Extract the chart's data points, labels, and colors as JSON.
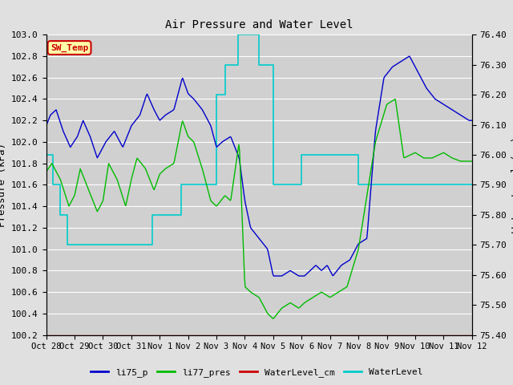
{
  "title": "Air Pressure and Water Level",
  "ylabel_left": "Pressure (kPa)",
  "ylabel_right": "Water Level (cm)",
  "ylim_left": [
    100.2,
    103.0
  ],
  "ylim_right": [
    75.4,
    76.4
  ],
  "yticks_left": [
    100.2,
    100.4,
    100.6,
    100.8,
    101.0,
    101.2,
    101.4,
    101.6,
    101.8,
    102.0,
    102.2,
    102.4,
    102.6,
    102.8,
    103.0
  ],
  "yticks_right": [
    75.4,
    75.5,
    75.6,
    75.7,
    75.8,
    75.9,
    76.0,
    76.1,
    76.2,
    76.3,
    76.4
  ],
  "xtick_labels": [
    "Oct 28",
    "Oct 29",
    "Oct 30",
    "Oct 31",
    "Nov 1",
    "Nov 2",
    "Nov 3",
    "Nov 4",
    "Nov 5",
    "Nov 6",
    "Nov 7",
    "Nov 8",
    "Nov 9",
    "Nov 10",
    "Nov 11",
    "Nov 12"
  ],
  "bg_color": "#e0e0e0",
  "plot_bg_color": "#d0d0d0",
  "grid_color": "#ffffff",
  "colors": {
    "li75_p": "#0000cc",
    "li77_pres": "#00bb00",
    "WaterLevel_cm": "#cc0000",
    "WaterLevel": "#00cccc"
  },
  "annotation_text": "SW_Temp",
  "annotation_color": "#cc0000",
  "annotation_bg": "#ffffaa",
  "annotation_border": "#cc0000",
  "n_days": 15,
  "li75_p_keypoints_x": [
    0,
    0.15,
    0.35,
    0.6,
    0.85,
    1.1,
    1.3,
    1.55,
    1.8,
    2.1,
    2.4,
    2.7,
    3.0,
    3.3,
    3.55,
    3.8,
    4.0,
    4.2,
    4.5,
    4.8,
    5.0,
    5.2,
    5.5,
    5.8,
    6.0,
    6.2,
    6.5,
    6.8,
    7.0,
    7.2,
    7.5,
    7.8,
    8.0,
    8.3,
    8.6,
    8.9,
    9.1,
    9.3,
    9.5,
    9.7,
    9.9,
    10.1,
    10.4,
    10.7,
    11.0,
    11.3,
    11.6,
    11.9,
    12.2,
    12.5,
    12.8,
    13.1,
    13.4,
    13.7,
    14.0,
    14.3,
    14.6,
    14.9,
    15.0
  ],
  "li75_p_keypoints_y": [
    102.15,
    102.25,
    102.3,
    102.1,
    101.95,
    102.05,
    102.2,
    102.05,
    101.85,
    102.0,
    102.1,
    101.95,
    102.15,
    102.25,
    102.45,
    102.3,
    102.2,
    102.25,
    102.3,
    102.6,
    102.45,
    102.4,
    102.3,
    102.15,
    101.95,
    102.0,
    102.05,
    101.85,
    101.45,
    101.2,
    101.1,
    101.0,
    100.75,
    100.75,
    100.8,
    100.75,
    100.75,
    100.8,
    100.85,
    100.8,
    100.85,
    100.75,
    100.85,
    100.9,
    101.05,
    101.1,
    102.1,
    102.6,
    102.7,
    102.75,
    102.8,
    102.65,
    102.5,
    102.4,
    102.35,
    102.3,
    102.25,
    102.2,
    102.2
  ],
  "li77_pres_keypoints_x": [
    0,
    0.2,
    0.5,
    0.8,
    1.0,
    1.2,
    1.5,
    1.8,
    2.0,
    2.2,
    2.5,
    2.8,
    3.0,
    3.2,
    3.5,
    3.8,
    4.0,
    4.2,
    4.5,
    4.8,
    5.0,
    5.2,
    5.5,
    5.8,
    6.0,
    6.3,
    6.5,
    6.8,
    7.0,
    7.2,
    7.5,
    7.8,
    8.0,
    8.3,
    8.6,
    8.9,
    9.1,
    9.4,
    9.7,
    10.0,
    10.3,
    10.6,
    11.0,
    11.3,
    11.6,
    12.0,
    12.3,
    12.6,
    13.0,
    13.3,
    13.6,
    14.0,
    14.3,
    14.6,
    14.9,
    15.0
  ],
  "li77_pres_keypoints_y": [
    101.72,
    101.8,
    101.65,
    101.4,
    101.5,
    101.75,
    101.55,
    101.35,
    101.45,
    101.8,
    101.65,
    101.4,
    101.65,
    101.85,
    101.75,
    101.55,
    101.7,
    101.75,
    101.8,
    102.2,
    102.05,
    102.0,
    101.75,
    101.45,
    101.4,
    101.5,
    101.45,
    102.0,
    100.65,
    100.6,
    100.55,
    100.4,
    100.35,
    100.45,
    100.5,
    100.45,
    100.5,
    100.55,
    100.6,
    100.55,
    100.6,
    100.65,
    101.0,
    101.5,
    102.0,
    102.35,
    102.4,
    101.85,
    101.9,
    101.85,
    101.85,
    101.9,
    101.85,
    101.82,
    101.82,
    101.82
  ],
  "wl_step_x": [
    0.0,
    0.25,
    0.5,
    0.75,
    1.0,
    1.75,
    2.5,
    3.25,
    3.75,
    4.25,
    4.75,
    5.5,
    6.0,
    6.3,
    6.75,
    7.0,
    7.25,
    7.5,
    8.0,
    8.5,
    9.0,
    9.5,
    10.0,
    10.5,
    11.0,
    11.5,
    12.0,
    13.0,
    14.0,
    15.0
  ],
  "wl_step_y": [
    76.0,
    75.9,
    75.8,
    75.7,
    75.7,
    75.7,
    75.7,
    75.7,
    75.8,
    75.8,
    75.9,
    75.9,
    76.2,
    76.3,
    76.4,
    76.4,
    76.4,
    76.3,
    75.9,
    75.9,
    76.0,
    76.0,
    76.0,
    76.0,
    75.9,
    75.9,
    75.9,
    75.9,
    75.9,
    75.9
  ]
}
